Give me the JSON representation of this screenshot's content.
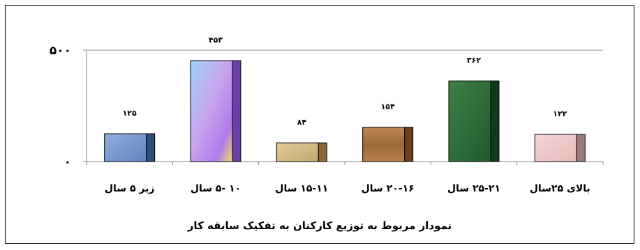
{
  "chart_data": {
    "type": "bar",
    "title": "نمودار مربوط به توزیع کارکنان به تفکیک سابقه کار",
    "categories": [
      "زیر ۵ سال",
      "۱۰ -۵ سال",
      "۱۵-۱۱ سال",
      "۲۰-۱۶ سال",
      "۲۵-۲۱ سال",
      "بالای ۲۵سال"
    ],
    "values": [
      125,
      453,
      84,
      154,
      362,
      122
    ],
    "value_labels": [
      "۱۲۵",
      "۴۵۳",
      "۸۴",
      "۱۵۴",
      "۳۶۲",
      "۱۲۲"
    ],
    "ylim": [
      0,
      500
    ],
    "yticks": [
      0,
      500
    ],
    "ytick_labels": [
      "۰",
      "۵۰۰"
    ],
    "grid": false,
    "bar_colors": [
      "#7f9fd0",
      "#c4a8ec",
      "#d4bb88",
      "#a87648",
      "#2f6b3a",
      "#efc7c8"
    ],
    "bar_shadow_colors": [
      "#2a4f7a",
      "#6a3fa8",
      "#8a6a3a",
      "#6b3f1a",
      "#0f3a1c",
      "#9a7b7c"
    ]
  }
}
